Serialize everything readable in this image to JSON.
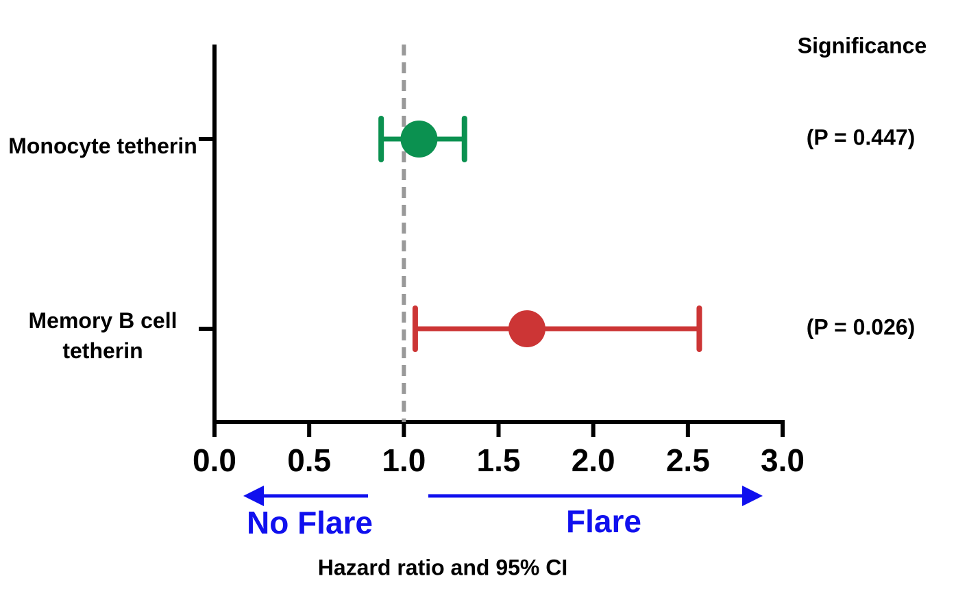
{
  "chart_data": {
    "type": "forest",
    "categories": [
      "Monocyte tetherin",
      "Memory B cell tetherin"
    ],
    "values": [
      1.08,
      1.65
    ],
    "ci_low": [
      0.88,
      1.06
    ],
    "ci_high": [
      1.32,
      2.56
    ],
    "colors": [
      "#0b9150",
      "#cc3535"
    ],
    "p_header": "Significance",
    "p_labels": [
      "(P = 0.447)",
      "(P = 0.026)"
    ],
    "xlim": [
      0,
      3
    ],
    "xticks": [
      {
        "value": 0,
        "label": "0.0"
      },
      {
        "value": 0.5,
        "label": "0.5"
      },
      {
        "value": 1,
        "label": "1.0"
      },
      {
        "value": 1.5,
        "label": "1.5"
      },
      {
        "value": 2,
        "label": "2.0"
      },
      {
        "value": 2.5,
        "label": "2.5"
      },
      {
        "value": 3,
        "label": "3.0"
      }
    ],
    "reference_line": 1,
    "left_annotation": "No Flare",
    "right_annotation": "Flare",
    "xlabel": "Hazard ratio and 95% CI"
  }
}
